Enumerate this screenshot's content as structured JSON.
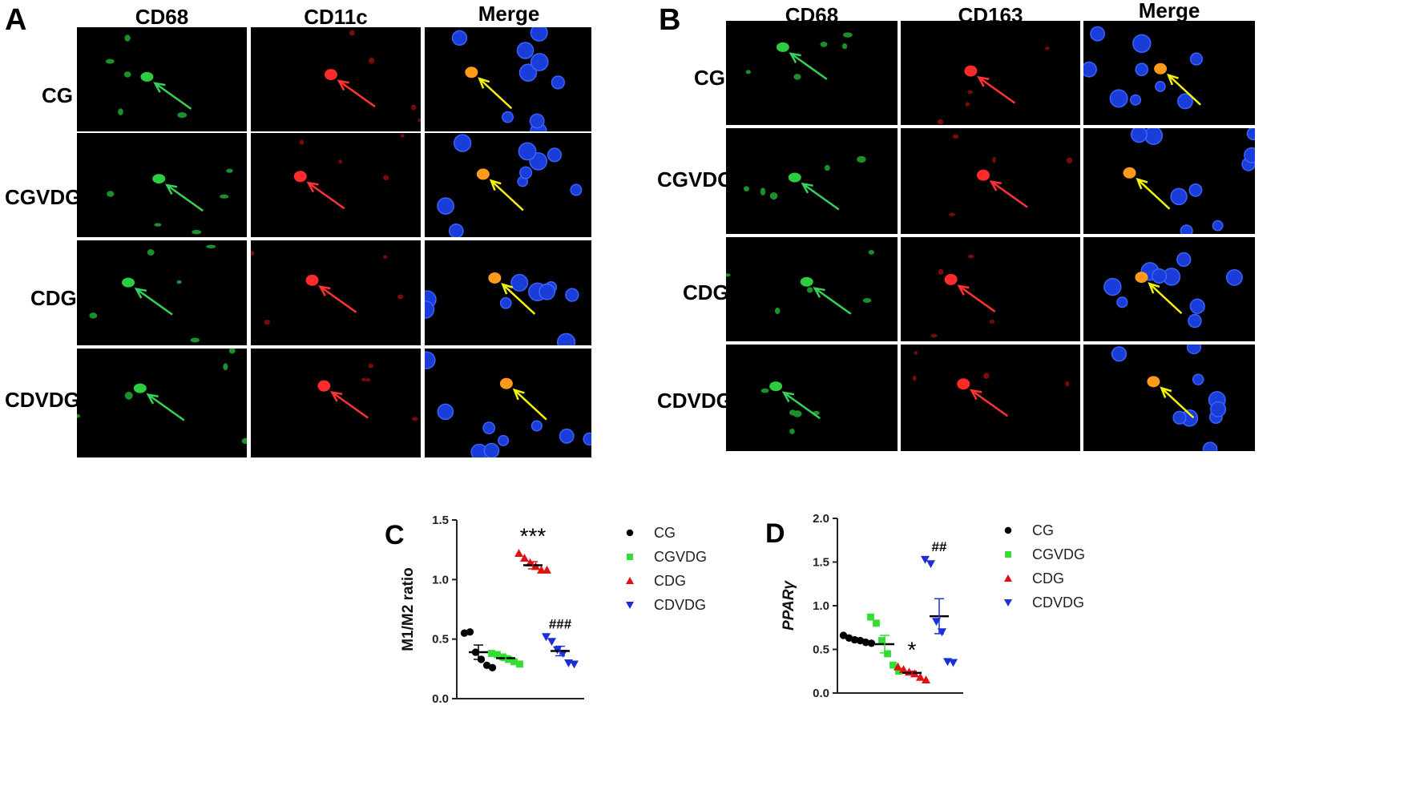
{
  "panel_a": {
    "letter": "A",
    "columns": [
      "CD68",
      "CD11c",
      "Merge"
    ],
    "rows": [
      "CG",
      "CGVDG",
      "CDG",
      "CDVDG"
    ]
  },
  "panel_b": {
    "letter": "B",
    "columns": [
      "CD68",
      "CD163",
      "Merge"
    ],
    "rows": [
      "CG",
      "CGVDG",
      "CDG",
      "CDVDG"
    ]
  },
  "colors": {
    "CG": "#000000",
    "CGVDG": "#33dd33",
    "CDG": "#e01010",
    "CDVDG": "#1a2fd6",
    "green_channel": "#2ecc40",
    "red_channel": "#ff2a2a",
    "nucleus_blue": "#1e44e0",
    "arrow_yellow": "#f2f20a"
  },
  "chart_data": [
    {
      "panel": "C",
      "type": "scatter",
      "ylabel": "M1/M2 ratio",
      "ylim": [
        0,
        1.5
      ],
      "yticks": [
        "0.0",
        "0.5",
        "1.0",
        "1.5"
      ],
      "grid": false,
      "legend_position": "right",
      "series": [
        {
          "name": "CG",
          "marker": "circle",
          "values": [
            0.55,
            0.56,
            0.39,
            0.33,
            0.28,
            0.26
          ],
          "mean": 0.39,
          "sem": 0.06
        },
        {
          "name": "CGVDG",
          "marker": "square",
          "values": [
            0.38,
            0.37,
            0.35,
            0.33,
            0.31,
            0.29
          ],
          "mean": 0.34,
          "sem": 0.02
        },
        {
          "name": "CDG",
          "marker": "triangle-up",
          "values": [
            1.22,
            1.18,
            1.14,
            1.11,
            1.08,
            1.08
          ],
          "mean": 1.12,
          "sem": 0.03,
          "annotation": "***"
        },
        {
          "name": "CDVDG",
          "marker": "triangle-down",
          "values": [
            0.52,
            0.48,
            0.41,
            0.38,
            0.3,
            0.29
          ],
          "mean": 0.4,
          "sem": 0.04,
          "annotation": "###"
        }
      ]
    },
    {
      "panel": "D",
      "type": "scatter",
      "ylabel": "PPARγ",
      "ylim": [
        0,
        2.0
      ],
      "yticks": [
        "0.0",
        "0.5",
        "1.0",
        "1.5",
        "2.0"
      ],
      "grid": false,
      "legend_position": "right",
      "series": [
        {
          "name": "CG",
          "marker": "circle",
          "values": [
            0.66,
            0.63,
            0.61,
            0.6,
            0.58,
            0.57
          ],
          "mean": 0.61,
          "sem": 0.02
        },
        {
          "name": "CGVDG",
          "marker": "square",
          "values": [
            0.87,
            0.8,
            0.6,
            0.45,
            0.32,
            0.25
          ],
          "mean": 0.56,
          "sem": 0.1
        },
        {
          "name": "CDG",
          "marker": "triangle-up",
          "values": [
            0.3,
            0.27,
            0.24,
            0.22,
            0.18,
            0.15
          ],
          "mean": 0.23,
          "sem": 0.02,
          "annotation": "*"
        },
        {
          "name": "CDVDG",
          "marker": "triangle-down",
          "values": [
            1.53,
            1.48,
            0.82,
            0.7,
            0.36,
            0.35
          ],
          "mean": 0.88,
          "sem": 0.2,
          "annotation": "##"
        }
      ]
    }
  ]
}
